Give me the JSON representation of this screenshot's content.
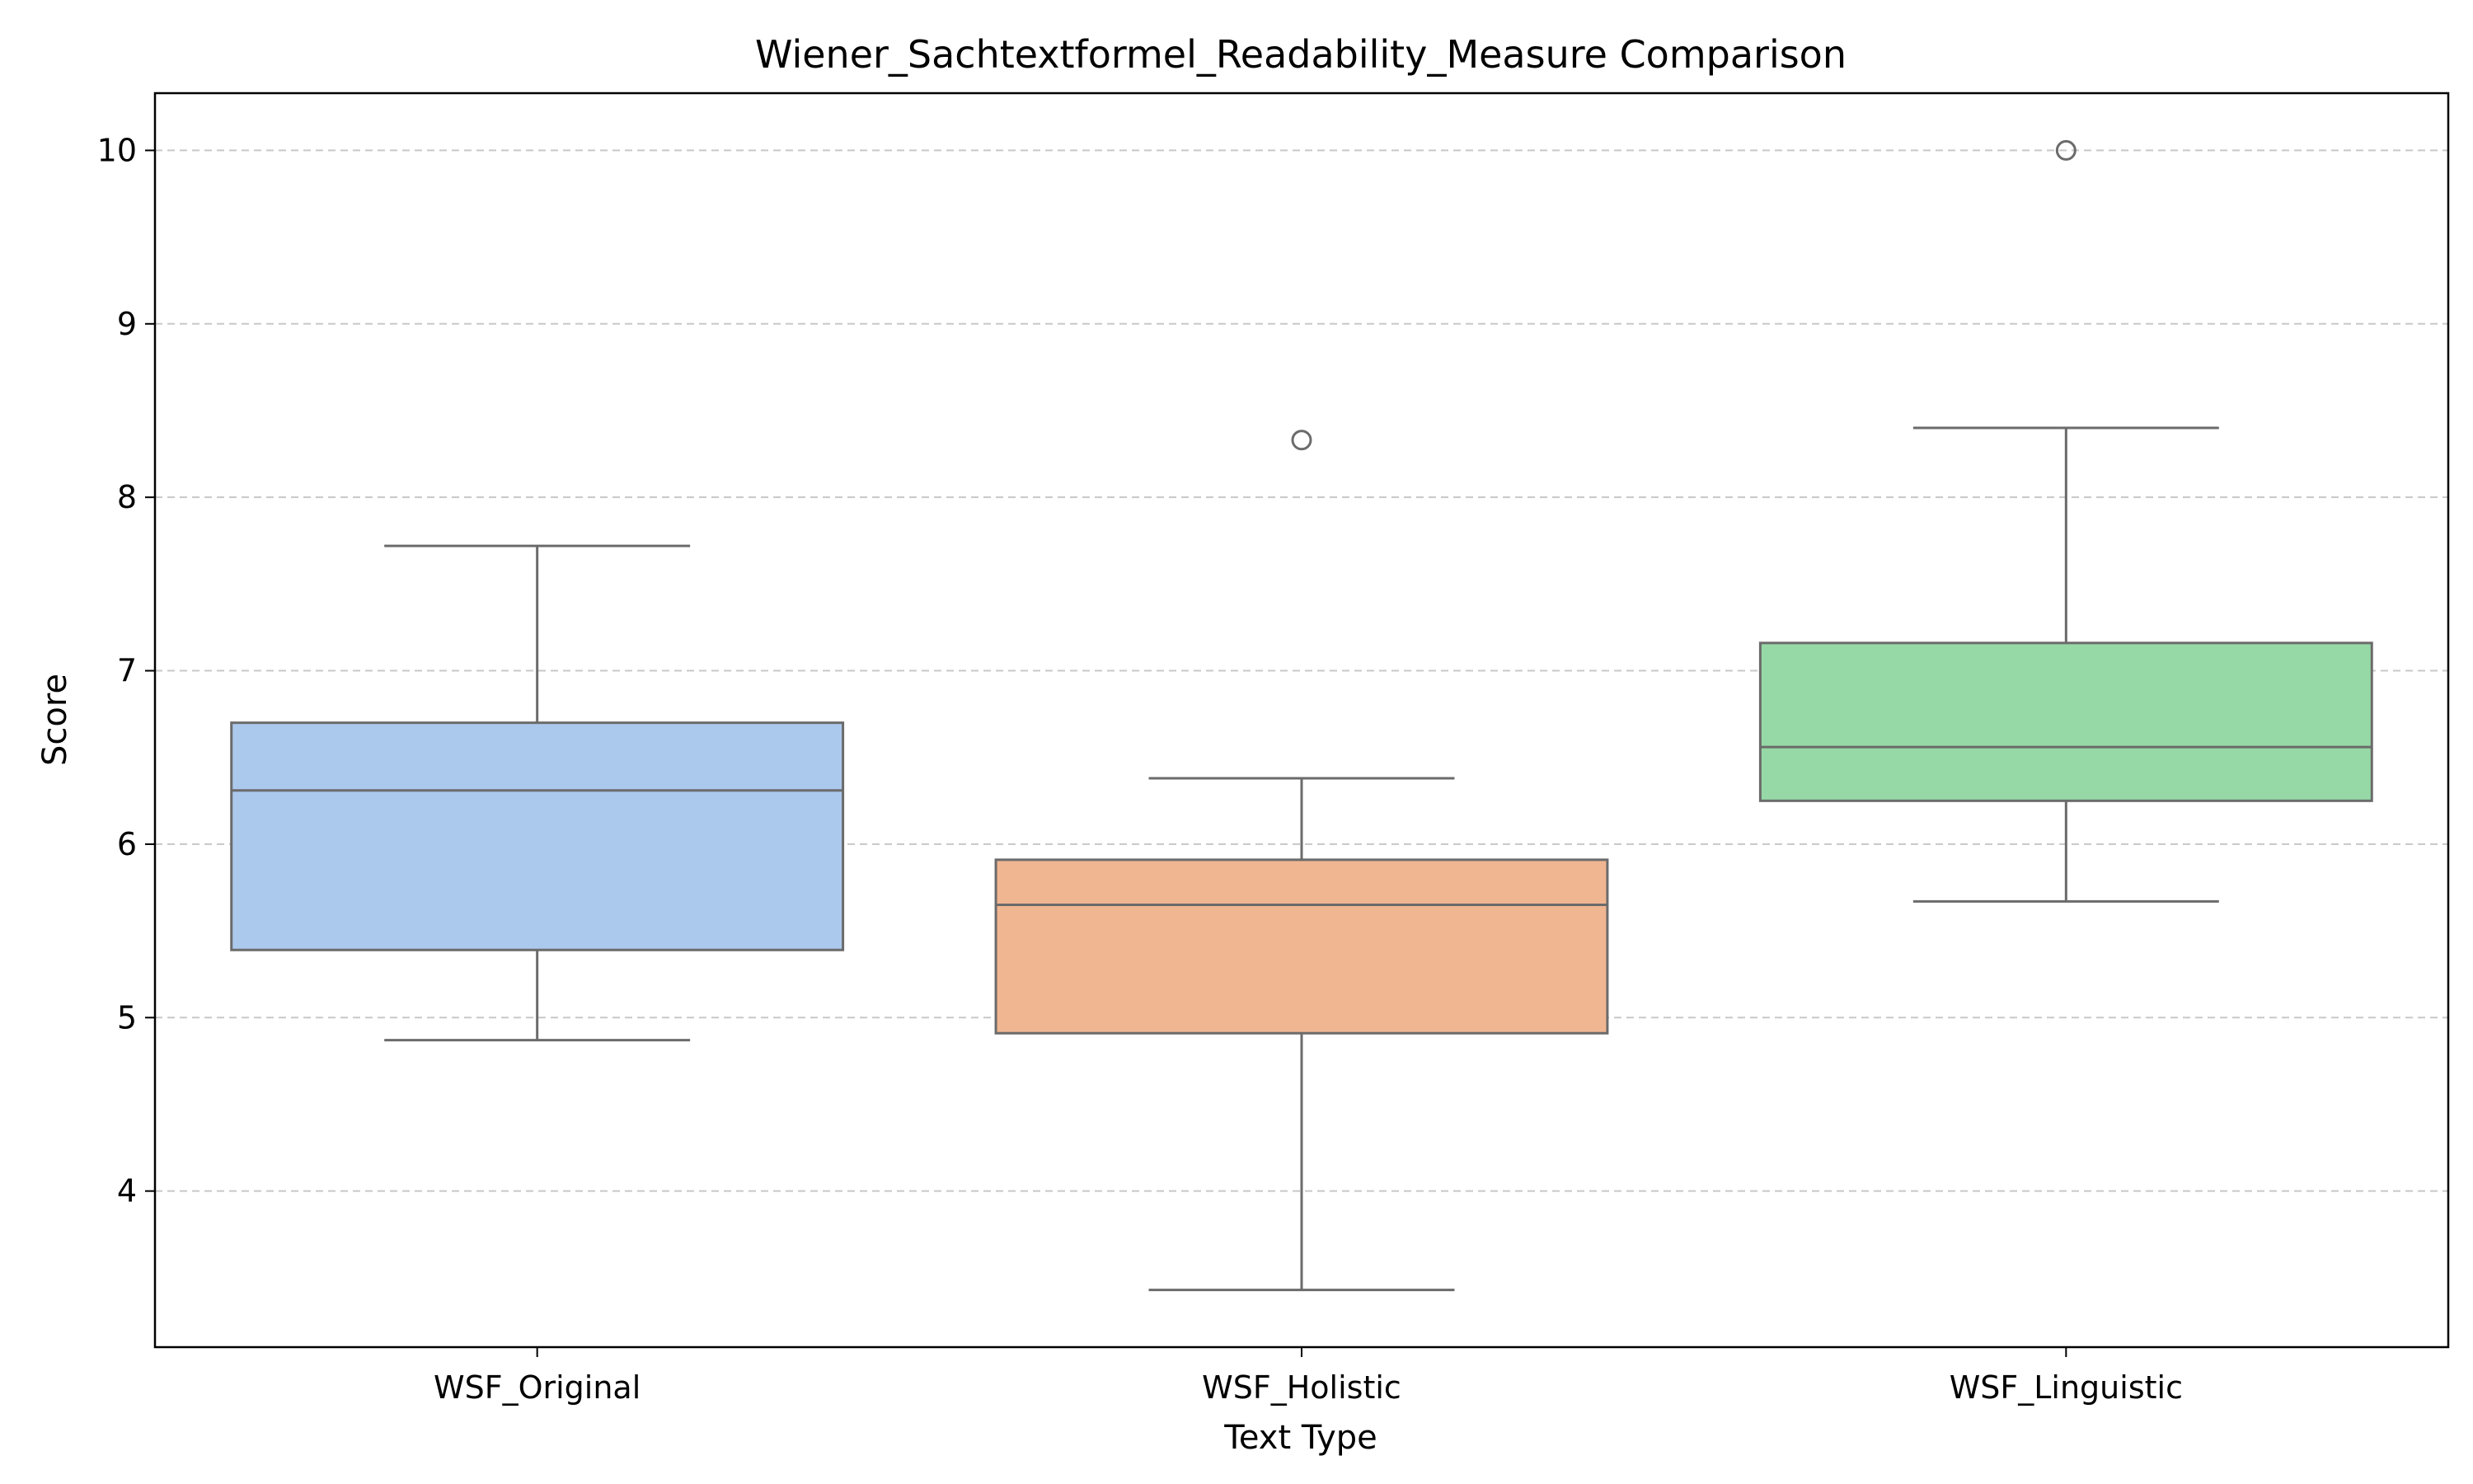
{
  "chart_data": {
    "type": "box",
    "title": "Wiener_Sachtextformel_Readability_Measure Comparison",
    "xlabel": "Text Type",
    "ylabel": "Score",
    "ylim": [
      3.1,
      10.33
    ],
    "yticks": [
      "4",
      "5",
      "6",
      "7",
      "8",
      "9",
      "10"
    ],
    "grid": "y, dashed",
    "categories": [
      "WSF_Original",
      "WSF_Holistic",
      "WSF_Linguistic"
    ],
    "boxes": [
      {
        "category": "WSF_Original",
        "whisker_low": 4.87,
        "q1": 5.39,
        "median": 6.31,
        "q3": 6.7,
        "whisker_high": 7.72,
        "outliers": [],
        "color": "#abc9ec"
      },
      {
        "category": "WSF_Holistic",
        "whisker_low": 3.43,
        "q1": 4.91,
        "median": 5.65,
        "q3": 5.91,
        "whisker_high": 6.38,
        "outliers": [
          8.33
        ],
        "color": "#f0b692"
      },
      {
        "category": "WSF_Linguistic",
        "whisker_low": 5.67,
        "q1": 6.25,
        "median": 6.56,
        "q3": 7.16,
        "whisker_high": 8.4,
        "outliers": [
          10.0
        ],
        "color": "#96d9a6"
      }
    ],
    "colors": {
      "line": "#6b6b6b",
      "grid": "#c8c8c8",
      "axis": "#000000"
    }
  }
}
